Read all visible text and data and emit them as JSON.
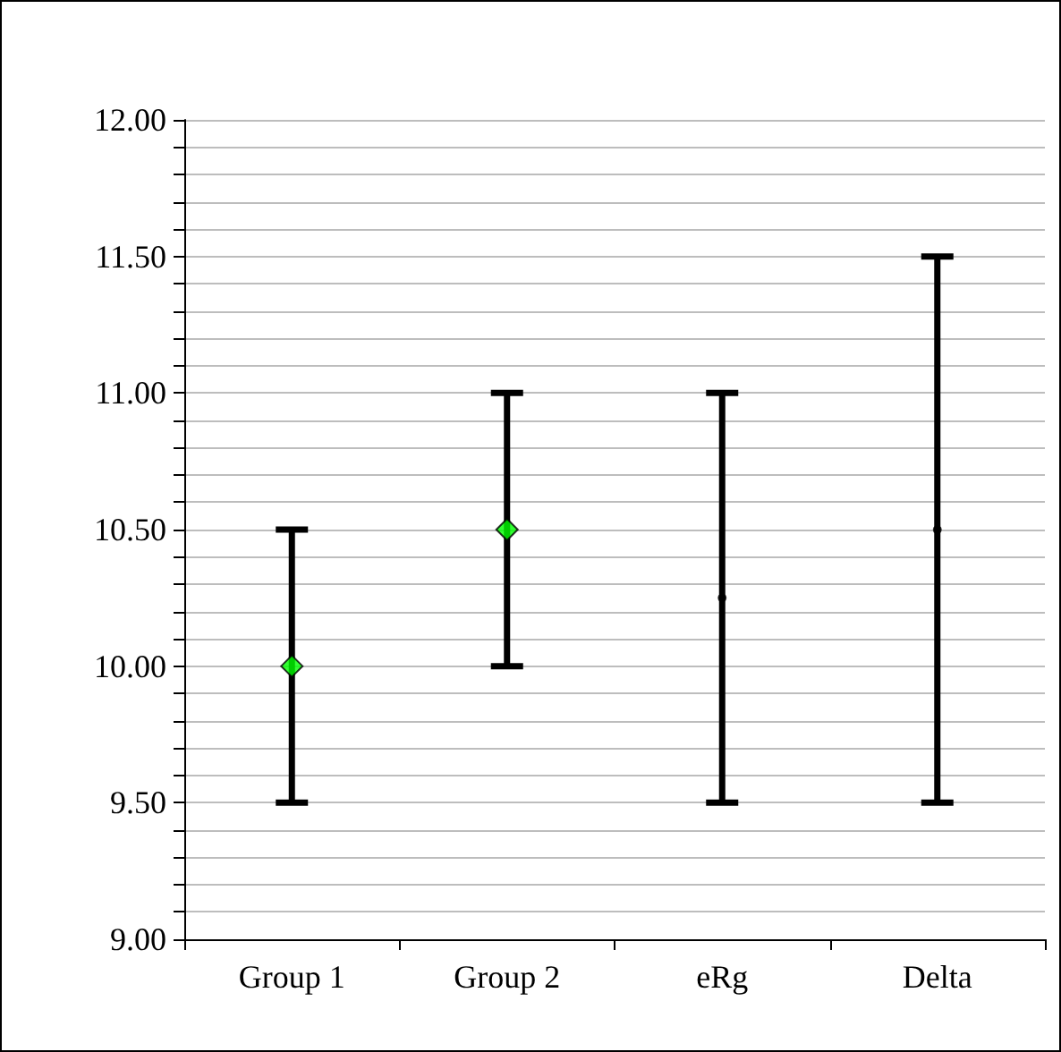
{
  "chart_data": {
    "type": "scatter",
    "categories": [
      "Group 1",
      "Group 2",
      "eRg",
      "Delta"
    ],
    "series": [
      {
        "color": "#00ff00",
        "values": [
          10.0,
          10.5,
          null,
          null
        ],
        "errors": [
          0.5,
          0.5,
          null,
          null
        ]
      },
      {
        "marker": "circle",
        "color": "#000000",
        "values": [
          null,
          null,
          10.25,
          10.5
        ],
        "errors": [
          null,
          null,
          0.75,
          1.0
        ]
      }
    ],
    "ylim": [
      9.0,
      12.0
    ],
    "yticks": [
      "9.00",
      {
        "value": 9.1,
        "label": null
      },
      {
        "value": 9.2,
        "label": null
      },
      {
        "value": 9.3,
        "label": null
      },
      {
        "value": 9.4,
        "label": null
      },
      {
        "value": 9.5,
        "label": "9.50"
      },
      {
        "value": 9.6,
        "label": null
      },
      {
        "value": 9.7,
        "label": null
      },
      {
        "value": 9.8,
        "label": null
      },
      {
        "value": 9.9,
        "label": null
      },
      {
        "value": 10.0,
        "label": "10.00"
      },
      {
        "value": 10.1,
        "label": null
      },
      {
        "value": 10.2,
        "label": null
      },
      {
        "value": 10.3,
        "label": null
      },
      {
        "value": 10.4,
        "label": null
      },
      {
        "value": 10.5,
        "label": "10.50"
      },
      {
        "value": 10.6,
        "label": null
      },
      {
        "value": 10.7,
        "label": null
      },
      {
        "value": 10.8,
        "label": null
      },
      {
        "value": 10.9,
        "label": null
      },
      {
        "value": 11.0,
        "label": "11.00"
      },
      {
        "value": 11.1,
        "label": null
      },
      {
        "value": 11.2,
        "label": null
      },
      {
        "value": 11.3,
        "label": null
      },
      {
        "value": 11.4,
        "label": null
      },
      {
        "value": 11.5,
        "label": "11.50"
      },
      {
        "value": 11.6,
        "label": null
      },
      {
        "value": 11.7,
        "label": null
      },
      {
        "value": 11.8,
        "label": null
      },
      {
        "value": 11.9,
        "label": null
      },
      {
        "value": 12.0,
        "label": "12.00"
      }
    ],
    "grid": "y",
    "marker": "diamond"
  }
}
